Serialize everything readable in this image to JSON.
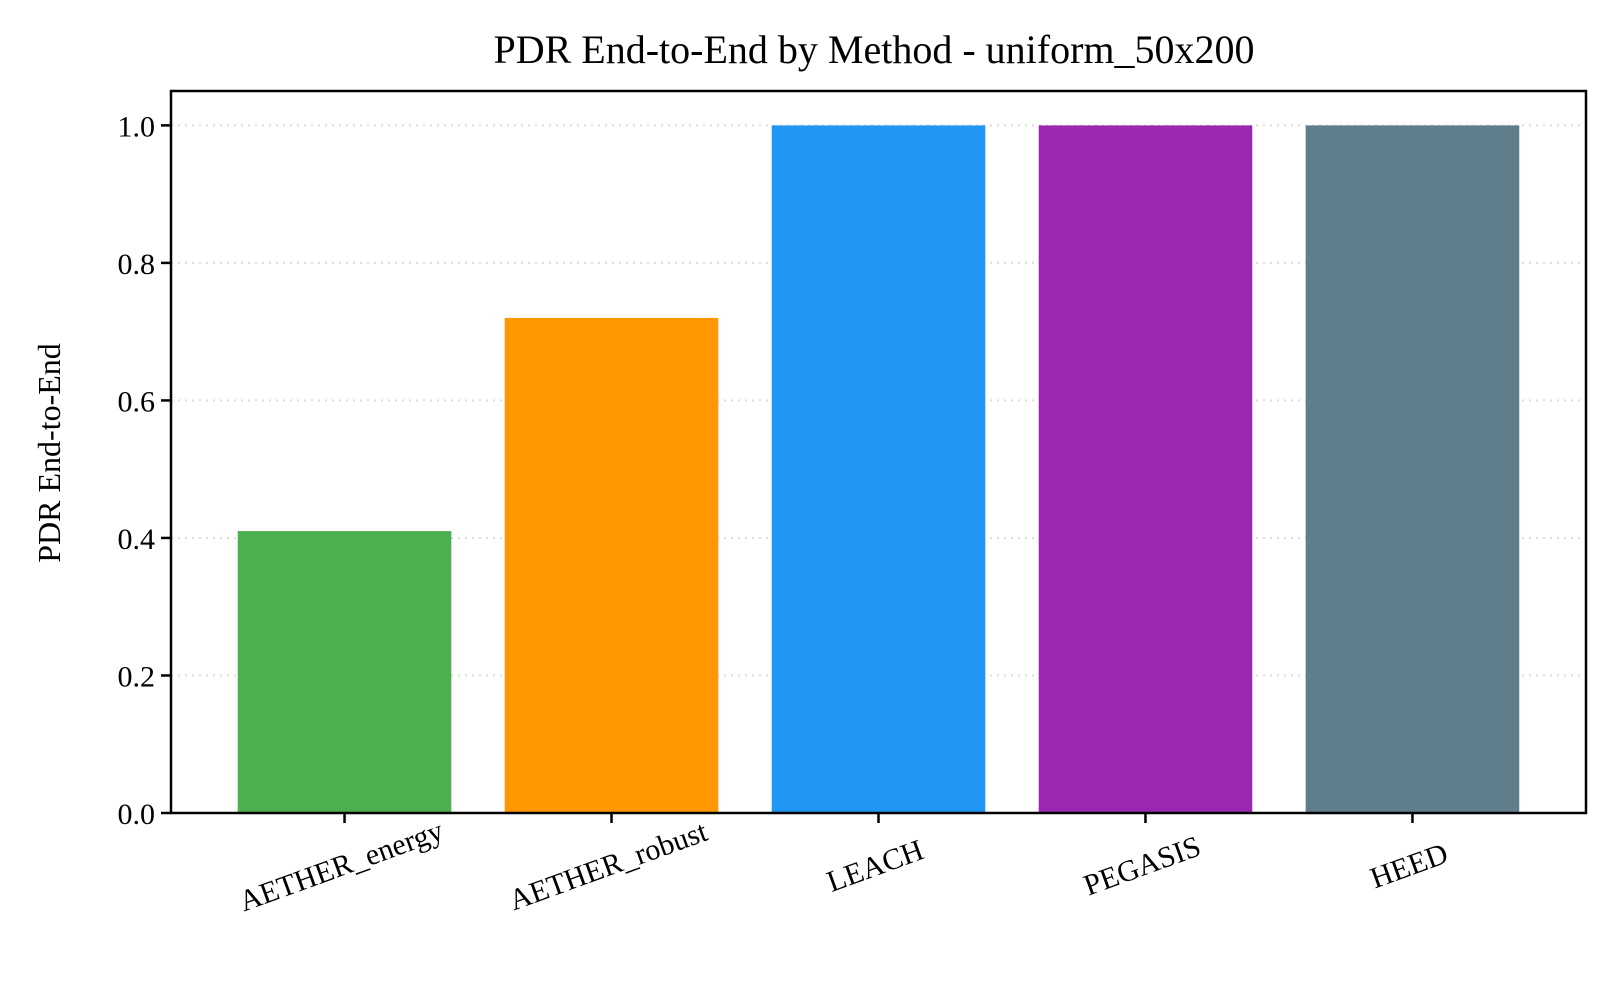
{
  "chart_data": {
    "type": "bar",
    "title": "PDR End-to-End by Method - uniform_50x200",
    "xlabel": "",
    "ylabel": "PDR End-to-End",
    "categories": [
      "AETHER_energy",
      "AETHER_robust",
      "LEACH",
      "PEGASIS",
      "HEED"
    ],
    "values": [
      0.41,
      0.72,
      1.0,
      1.0,
      1.0
    ],
    "colors": [
      "#4caf50",
      "#ff9800",
      "#2196f3",
      "#9c27b0",
      "#607d8b"
    ],
    "ylim": [
      0,
      1.05
    ],
    "yticks": [
      "0.0",
      "0.2",
      "0.4",
      "0.6",
      "0.8",
      "1.0"
    ],
    "grid": "y, dotted",
    "legend": "none"
  }
}
